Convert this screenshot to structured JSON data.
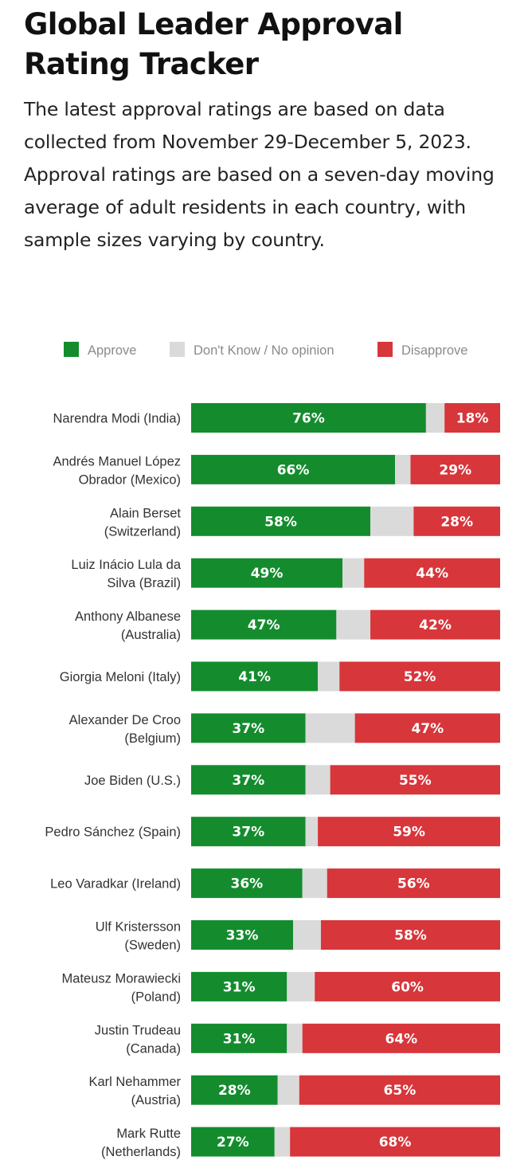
{
  "header": {
    "title": "Global Leader Approval Rating Tracker",
    "subtitle": "The latest approval ratings are based on data collected from November 29-December 5, 2023. Approval ratings are based on a seven-day moving average of adult residents in each country, with sample sizes varying by country."
  },
  "chart_data": {
    "type": "bar",
    "orientation": "horizontal",
    "stacked": true,
    "title": "Global Leader Approval Rating Tracker",
    "xlabel": "",
    "ylabel": "",
    "xlim": [
      0,
      100
    ],
    "legend_position": "top",
    "legend": [
      "Approve",
      "Don't Know / No opinion",
      "Disapprove"
    ],
    "colors": {
      "approve": "#148c2e",
      "dont_know": "#dadada",
      "disapprove": "#d7363b"
    },
    "categories": [
      [
        "Narendra Modi (India)"
      ],
      [
        "Andrés Manuel López",
        "Obrador (Mexico)"
      ],
      [
        "Alain Berset",
        "(Switzerland)"
      ],
      [
        "Luiz Inácio Lula da",
        "Silva (Brazil)"
      ],
      [
        "Anthony Albanese",
        "(Australia)"
      ],
      [
        "Giorgia Meloni (Italy)"
      ],
      [
        "Alexander De Croo",
        "(Belgium)"
      ],
      [
        "Joe Biden (U.S.)"
      ],
      [
        "Pedro Sánchez (Spain)"
      ],
      [
        "Leo Varadkar (Ireland)"
      ],
      [
        "Ulf Kristersson",
        "(Sweden)"
      ],
      [
        "Mateusz Morawiecki",
        "(Poland)"
      ],
      [
        "Justin Trudeau",
        "(Canada)"
      ],
      [
        "Karl Nehammer",
        "(Austria)"
      ],
      [
        "Mark Rutte",
        "(Netherlands)"
      ]
    ],
    "series": [
      {
        "name": "Approve",
        "values": [
          76,
          66,
          58,
          49,
          47,
          41,
          37,
          37,
          37,
          36,
          33,
          31,
          31,
          28,
          27
        ]
      },
      {
        "name": "Don't Know / No opinion",
        "values": [
          6,
          5,
          14,
          7,
          11,
          7,
          16,
          8,
          4,
          8,
          9,
          9,
          5,
          7,
          5
        ]
      },
      {
        "name": "Disapprove",
        "values": [
          18,
          29,
          28,
          44,
          42,
          52,
          47,
          55,
          59,
          56,
          58,
          60,
          64,
          65,
          68
        ]
      }
    ],
    "value_labels": {
      "approve": [
        "76%",
        "66%",
        "58%",
        "49%",
        "47%",
        "41%",
        "37%",
        "37%",
        "37%",
        "36%",
        "33%",
        "31%",
        "31%",
        "28%",
        "27%"
      ],
      "disapprove": [
        "18%",
        "29%",
        "28%",
        "44%",
        "42%",
        "52%",
        "47%",
        "55%",
        "59%",
        "56%",
        "58%",
        "60%",
        "64%",
        "65%",
        "68%"
      ]
    }
  }
}
